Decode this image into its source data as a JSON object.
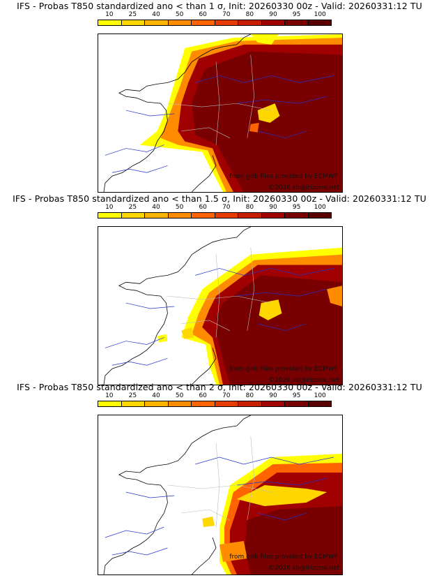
{
  "palette": [
    "#ffff00",
    "#ffd700",
    "#ffb400",
    "#ff8c00",
    "#ff6400",
    "#e63c00",
    "#c81e00",
    "#a00000",
    "#780000",
    "#5a0000"
  ],
  "ticks": [
    "10",
    "25",
    "40",
    "50",
    "60",
    "70",
    "80",
    "90",
    "95",
    "100"
  ],
  "panels": [
    {
      "title": "IFS - Probas T850  standardized ano < than 1 σ, Init: 20260330 00z - Valid: 20260331:12 TU",
      "credit_source": "from grib files provided by ECMWF",
      "credit_copyright": "©2026 sb@irizone.net"
    },
    {
      "title": "IFS - Probas T850  standardized ano < than 1.5 σ, Init: 20260330 00z - Valid: 20260331:12 TU",
      "credit_source": "from grib files provided by ECMWF",
      "credit_copyright": "©2026 sb@irizone.net"
    },
    {
      "title": "IFS - Probas T850  standardized ano < than 2 σ, Init: 20260330 00z - Valid: 20260331:12 TU",
      "credit_source": "from grib files provided by ECMWF",
      "credit_copyright": "©2026 sb@irizone.net"
    }
  ]
}
